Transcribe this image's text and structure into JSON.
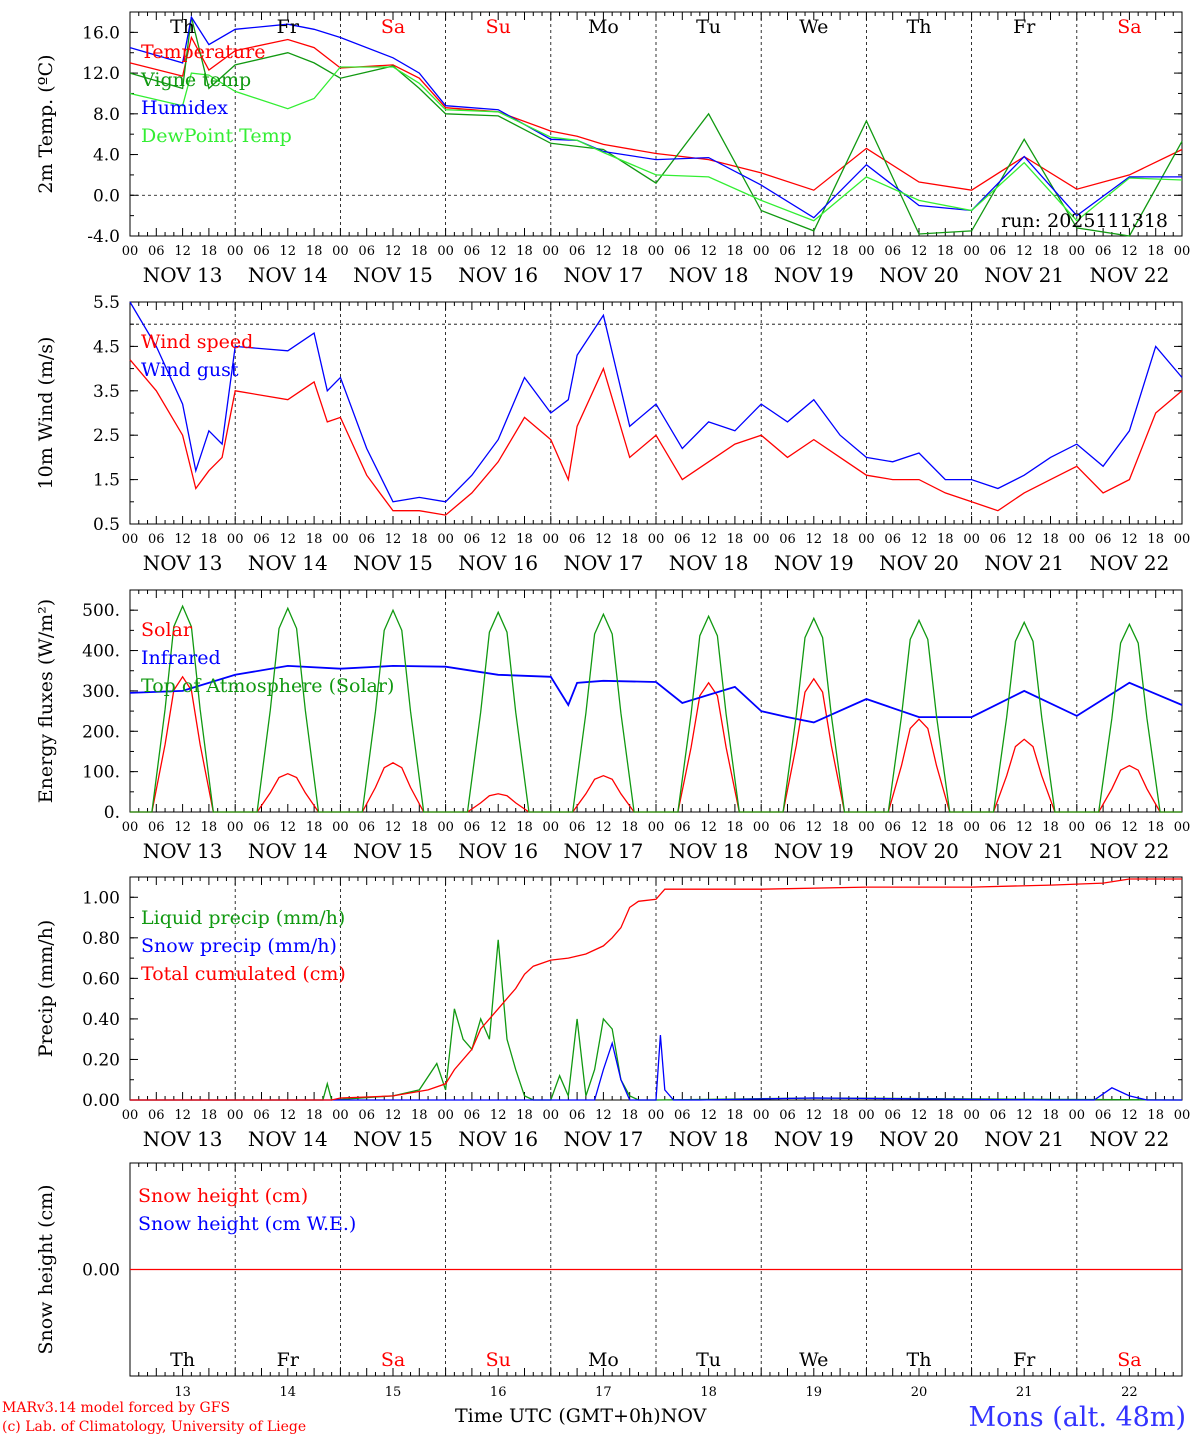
{
  "colors": {
    "red": "#ff0000",
    "green": "#119911",
    "blue": "#0000ff",
    "lime": "#33ee33",
    "grid": "#000000"
  },
  "footer": {
    "model": "MARv3.14 model forced by GFS",
    "lab": "(c) Lab. of Climatology, University of Liege",
    "time_label": "Time UTC (GMT+0h)",
    "month": "NOV",
    "station": "Mons (alt. 48m)"
  },
  "chart_data": {
    "type": "line",
    "days": [
      "NOV 13",
      "NOV 14",
      "NOV 15",
      "NOV 16",
      "NOV 17",
      "NOV 18",
      "NOV 19",
      "NOV 20",
      "NOV 21",
      "NOV 22"
    ],
    "weekdays": [
      "Th",
      "Fr",
      "Sa",
      "Su",
      "Mo",
      "Tu",
      "We",
      "Th",
      "Fr",
      "Sa"
    ],
    "weekend": [
      false,
      false,
      true,
      true,
      false,
      false,
      false,
      false,
      false,
      true
    ],
    "day_numbers": [
      "13",
      "14",
      "15",
      "16",
      "17",
      "18",
      "19",
      "20",
      "21",
      "22"
    ],
    "hour_ticks": [
      "00",
      "06",
      "12",
      "18"
    ],
    "x_range_hours": [
      0,
      240
    ],
    "panels": [
      {
        "id": "temp",
        "ylabel": "2m Temp. (ºC)",
        "ylim": [
          -4,
          18
        ],
        "yticks": [
          "-4.0",
          "0.0",
          "4.0",
          "8.0",
          "12.0",
          "16.0"
        ],
        "ytick_values": [
          -4,
          0,
          4,
          8,
          12,
          16
        ],
        "dashed": [
          0
        ],
        "annotation": "run: 2025111318",
        "series": [
          {
            "name": "Temperature",
            "color": "red",
            "x": [
              0,
              12,
              14,
              18,
              24,
              36,
              42,
              48,
              60,
              66,
              72,
              84,
              96,
              102,
              108,
              120,
              132,
              144,
              156,
              168,
              180,
              192,
              204,
              216,
              228,
              240
            ],
            "y": [
              13,
              11.7,
              15.5,
              12.3,
              14.2,
              15.3,
              14.5,
              12.5,
              12.8,
              11.5,
              8.6,
              8.2,
              6.3,
              5.8,
              5,
              4.1,
              3.5,
              2.2,
              0.5,
              4.6,
              1.3,
              0.5,
              3.8,
              0.6,
              2,
              4.5
            ]
          },
          {
            "name": "Vigne temp",
            "color": "green",
            "x": [
              0,
              12,
              14,
              18,
              24,
              36,
              42,
              48,
              60,
              66,
              72,
              84,
              96,
              102,
              108,
              120,
              132,
              144,
              156,
              168,
              180,
              192,
              204,
              216,
              228,
              240
            ],
            "y": [
              12,
              10.5,
              17.5,
              10.5,
              12.8,
              14,
              13,
              11.5,
              12.7,
              10.5,
              8,
              7.8,
              5.1,
              4.8,
              4.5,
              1.2,
              8,
              -1.5,
              -3.5,
              7.3,
              -3.8,
              -3.5,
              5.5,
              -3.2,
              -4,
              5.3
            ]
          },
          {
            "name": "Humidex",
            "color": "blue",
            "x": [
              0,
              12,
              14,
              18,
              24,
              36,
              42,
              48,
              60,
              66,
              72,
              84,
              96,
              102,
              108,
              120,
              132,
              144,
              156,
              168,
              180,
              192,
              204,
              216,
              228,
              240
            ],
            "y": [
              14.5,
              13,
              17.5,
              14.8,
              16.3,
              16.8,
              16.3,
              15.5,
              13.5,
              12,
              8.8,
              8.4,
              5.5,
              5.4,
              4.3,
              3.5,
              3.7,
              1,
              -2.2,
              3,
              -1,
              -1.5,
              3.8,
              -2,
              1.8,
              1.8
            ]
          },
          {
            "name": "DewPoint Temp",
            "color": "lime",
            "x": [
              0,
              12,
              14,
              18,
              24,
              36,
              42,
              48,
              60,
              66,
              72,
              84,
              96,
              102,
              108,
              120,
              132,
              144,
              156,
              168,
              180,
              192,
              204,
              216,
              228,
              240
            ],
            "y": [
              10,
              8.8,
              12,
              11.8,
              10.2,
              8.5,
              9.5,
              12.6,
              12.6,
              11,
              8.4,
              8.2,
              5.7,
              5.4,
              4.2,
              2,
              1.8,
              -0.5,
              -2.5,
              1.8,
              -0.5,
              -1.5,
              3.2,
              -2.5,
              1.7,
              1.5
            ]
          }
        ]
      },
      {
        "id": "wind",
        "ylabel": "10m Wind (m/s)",
        "ylim": [
          0.5,
          5.5
        ],
        "yticks": [
          "0.5",
          "1.5",
          "2.5",
          "3.5",
          "4.5",
          "5.5"
        ],
        "ytick_values": [
          0.5,
          1.5,
          2.5,
          3.5,
          4.5,
          5.5
        ],
        "dashed": [
          5
        ],
        "series": [
          {
            "name": "Wind speed",
            "color": "red",
            "x": [
              0,
              6,
              12,
              15,
              18,
              21,
              24,
              36,
              42,
              45,
              48,
              54,
              60,
              66,
              72,
              78,
              84,
              90,
              96,
              100,
              102,
              108,
              114,
              120,
              126,
              132,
              138,
              144,
              150,
              156,
              162,
              168,
              174,
              180,
              186,
              192,
              198,
              204,
              210,
              216,
              222,
              228,
              234,
              240
            ],
            "y": [
              4.2,
              3.5,
              2.5,
              1.3,
              1.7,
              2,
              3.5,
              3.3,
              3.7,
              2.8,
              2.9,
              1.6,
              0.8,
              0.8,
              0.7,
              1.2,
              1.9,
              2.9,
              2.4,
              1.5,
              2.7,
              4.0,
              2.0,
              2.5,
              1.5,
              1.9,
              2.3,
              2.5,
              2.0,
              2.4,
              2.0,
              1.6,
              1.5,
              1.5,
              1.2,
              1.0,
              0.8,
              1.2,
              1.5,
              1.8,
              1.2,
              1.5,
              3.0,
              3.5
            ]
          },
          {
            "name": "Wind gust",
            "color": "blue",
            "x": [
              0,
              6,
              12,
              15,
              18,
              21,
              24,
              36,
              42,
              45,
              48,
              54,
              60,
              66,
              72,
              78,
              84,
              90,
              96,
              100,
              102,
              108,
              114,
              120,
              126,
              132,
              138,
              144,
              150,
              156,
              162,
              168,
              174,
              180,
              186,
              192,
              198,
              204,
              210,
              216,
              222,
              228,
              234,
              240
            ],
            "y": [
              5.5,
              4.5,
              3.2,
              1.7,
              2.6,
              2.3,
              4.5,
              4.4,
              4.8,
              3.5,
              3.8,
              2.2,
              1.0,
              1.1,
              1.0,
              1.6,
              2.4,
              3.8,
              3.0,
              3.3,
              4.3,
              5.2,
              2.7,
              3.2,
              2.2,
              2.8,
              2.6,
              3.2,
              2.8,
              3.3,
              2.5,
              2.0,
              1.9,
              2.1,
              1.5,
              1.5,
              1.3,
              1.6,
              2.0,
              2.3,
              1.8,
              2.6,
              4.5,
              3.8
            ]
          }
        ]
      },
      {
        "id": "energy",
        "ylabel": "Energy fluxes (W/m²)",
        "ylim": [
          0,
          550
        ],
        "yticks": [
          "0.",
          "100.",
          "200.",
          "300.",
          "400.",
          "500."
        ],
        "ytick_values": [
          0,
          100,
          200,
          300,
          400,
          500
        ],
        "dashed": [],
        "series": [
          {
            "name": "Solar",
            "color": "red",
            "peaks": [
              335,
              95,
              122,
              45,
              90,
              320,
              330,
              230,
              180,
              115
            ]
          },
          {
            "name": "Infrared",
            "color": "blue",
            "x": [
              0,
              12,
              24,
              36,
              48,
              60,
              72,
              84,
              96,
              100,
              102,
              108,
              120,
              126,
              132,
              138,
              144,
              150,
              156,
              168,
              180,
              192,
              204,
              216,
              228,
              240
            ],
            "y": [
              295,
              300,
              340,
              362,
              355,
              362,
              360,
              340,
              335,
              265,
              320,
              325,
              322,
              270,
              290,
              310,
              250,
              235,
              222,
              280,
              235,
              235,
              300,
              238,
              320,
              265
            ]
          },
          {
            "name": "Top of Atmosphere (Solar)",
            "color": "green",
            "peaks": [
              510,
              505,
              500,
              495,
              490,
              485,
              480,
              475,
              470,
              465
            ]
          }
        ]
      },
      {
        "id": "precip",
        "ylabel": "Precip (mm/h)",
        "ylim": [
          0,
          1.1
        ],
        "yticks": [
          "0.00",
          "0.20",
          "0.40",
          "0.60",
          "0.80",
          "1.00"
        ],
        "ytick_values": [
          0,
          0.2,
          0.4,
          0.6,
          0.8,
          1.0
        ],
        "dashed": [],
        "series": [
          {
            "name": "Liquid precip (mm/h)",
            "color": "green",
            "x": [
              0,
              44,
              45,
              46,
              60,
              66,
              70,
              72,
              74,
              76,
              78,
              80,
              82,
              84,
              86,
              88,
              90,
              92,
              94,
              96,
              98,
              100,
              102,
              104,
              106,
              108,
              110,
              112,
              114,
              116,
              120,
              156,
              240
            ],
            "y": [
              0,
              0,
              0.08,
              0,
              0.02,
              0.05,
              0.18,
              0.05,
              0.45,
              0.3,
              0.25,
              0.4,
              0.3,
              0.79,
              0.3,
              0.15,
              0.02,
              0,
              0,
              0,
              0.12,
              0.02,
              0.4,
              0.02,
              0.15,
              0.4,
              0.35,
              0.1,
              0.02,
              0,
              0,
              0.01,
              0
            ]
          },
          {
            "name": "Snow precip (mm/h)",
            "color": "blue",
            "x": [
              0,
              106,
              108,
              110,
              112,
              114,
              118,
              120,
              121,
              122,
              124,
              130,
              156,
              210,
              220,
              224,
              228,
              232,
              240
            ],
            "y": [
              0,
              0,
              0.15,
              0.28,
              0.1,
              0,
              0,
              0,
              0.32,
              0.05,
              0,
              0,
              0.01,
              0,
              0,
              0.06,
              0.02,
              0,
              0
            ]
          },
          {
            "name": "Total cumulated (cm)",
            "color": "red",
            "x": [
              0,
              46,
              48,
              60,
              68,
              72,
              74,
              78,
              80,
              84,
              88,
              90,
              92,
              96,
              100,
              104,
              108,
              110,
              112,
              114,
              116,
              120,
              122,
              144,
              168,
              192,
              210,
              222,
              228,
              240
            ],
            "y": [
              0,
              0,
              0.01,
              0.02,
              0.05,
              0.08,
              0.15,
              0.25,
              0.35,
              0.45,
              0.55,
              0.62,
              0.66,
              0.69,
              0.7,
              0.72,
              0.76,
              0.8,
              0.85,
              0.95,
              0.98,
              0.99,
              1.04,
              1.04,
              1.05,
              1.05,
              1.06,
              1.07,
              1.09,
              1.09
            ]
          }
        ]
      },
      {
        "id": "snow",
        "ylabel": "Snow height (cm)",
        "ylim": [
          -1,
          1
        ],
        "yticks": [
          "0.00"
        ],
        "ytick_values": [
          0
        ],
        "dashed": [],
        "series": [
          {
            "name": "Snow height (cm)",
            "color": "red",
            "x": [
              0,
              240
            ],
            "y": [
              0,
              0
            ]
          },
          {
            "name": "Snow height (cm W.E.)",
            "color": "blue",
            "x": [],
            "y": []
          }
        ]
      }
    ]
  }
}
